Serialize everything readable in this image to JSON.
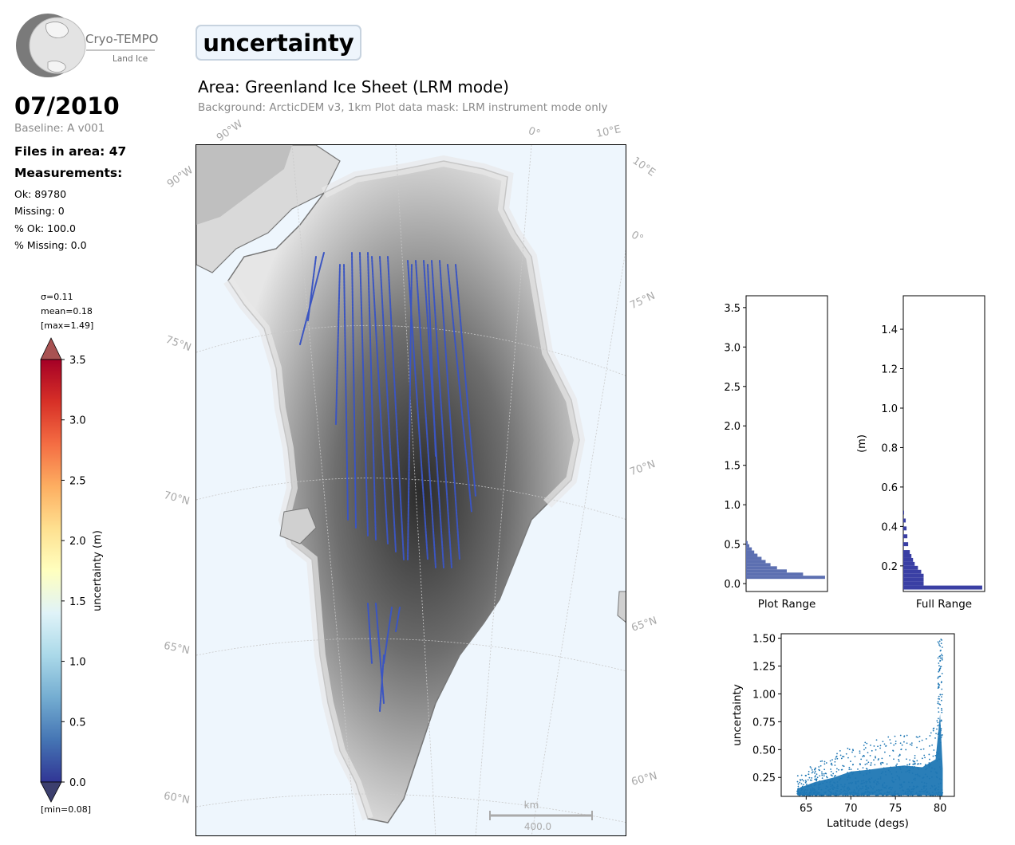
{
  "logo": {
    "name": "Cryo-TEMPO",
    "subtitle": "Land Ice"
  },
  "header": {
    "variable_title": "uncertainty",
    "area_title": "Area: Greenland Ice Sheet (LRM mode)",
    "subtitle": "Background: ArcticDEM v3, 1km   Plot data mask: LRM instrument mode only"
  },
  "summary": {
    "date": "07/2010",
    "baseline": "Baseline: A v001",
    "files": "Files in area: 47",
    "measurements_label": "Measurements:",
    "ok": "Ok: 89780",
    "missing": "Missing: 0",
    "pct_ok": "% Ok: 100.0",
    "pct_missing": "% Missing: 0.0"
  },
  "colorbar": {
    "sigma": "σ=0.11",
    "mean": "mean=0.18",
    "max": "[max=1.49]",
    "min": "[min=0.08]",
    "label": "uncertainty (m)",
    "ticks": [
      "0.0",
      "0.5",
      "1.0",
      "1.5",
      "2.0",
      "2.5",
      "3.0",
      "3.5"
    ],
    "colors": [
      "#313695",
      "#4575b4",
      "#74add1",
      "#abd9e9",
      "#e0f3f8",
      "#ffffbf",
      "#fee090",
      "#fdae61",
      "#f46d43",
      "#d73027",
      "#a50026"
    ]
  },
  "map": {
    "grid_labels": [
      "90°W",
      "90°W",
      "0°",
      "10°E",
      "10°E",
      "0°",
      "75°N",
      "75°N",
      "70°N",
      "70°N",
      "65°N",
      "65°N",
      "60°N",
      "60°N"
    ],
    "scale_unit": "km",
    "scale_value": "400.0"
  },
  "chart_data": [
    {
      "type": "bar",
      "orientation": "horizontal-histogram",
      "xlabel": "Plot Range",
      "ylim": [
        -0.1,
        3.65
      ],
      "yticks": [
        "0.0",
        "0.5",
        "1.0",
        "1.5",
        "2.0",
        "2.5",
        "3.0",
        "3.5"
      ],
      "bins": [
        0.06,
        0.1,
        0.14,
        0.18,
        0.22,
        0.26,
        0.3,
        0.34,
        0.38,
        0.42,
        0.46,
        0.5
      ],
      "values": [
        97,
        70,
        50,
        38,
        30,
        24,
        19,
        14,
        10,
        7,
        4,
        2
      ],
      "color": "#5c6fb1"
    },
    {
      "type": "bar",
      "orientation": "horizontal-histogram",
      "xlabel": "Full Range",
      "ylabel": "(m)",
      "ylim": [
        0.07,
        1.57
      ],
      "yticks": [
        "0.2",
        "0.4",
        "0.6",
        "0.8",
        "1.0",
        "1.2",
        "1.4"
      ],
      "bins": [
        0.08,
        0.1,
        0.12,
        0.14,
        0.16,
        0.18,
        0.2,
        0.22,
        0.24,
        0.26,
        0.3,
        0.34,
        0.38,
        0.42,
        0.46
      ],
      "values": [
        97,
        25,
        25,
        25,
        22,
        18,
        14,
        12,
        10,
        8,
        6,
        5,
        4,
        3,
        1
      ],
      "color": "#3a3fa4"
    },
    {
      "type": "scatter",
      "xlabel": "Latitude (degs)",
      "ylabel": "uncertainty",
      "xlim": [
        62.2,
        81.6
      ],
      "ylim": [
        0.08,
        1.54
      ],
      "xticks": [
        "65",
        "70",
        "75",
        "80"
      ],
      "yticks": [
        "0.25",
        "0.50",
        "0.75",
        "1.00",
        "1.25",
        "1.50"
      ],
      "color": "#1f77b4",
      "envelope": [
        {
          "x": 64.0,
          "y": 0.27
        },
        {
          "x": 66.0,
          "y": 0.38
        },
        {
          "x": 68.0,
          "y": 0.45
        },
        {
          "x": 70.0,
          "y": 0.55
        },
        {
          "x": 72.0,
          "y": 0.58
        },
        {
          "x": 74.0,
          "y": 0.62
        },
        {
          "x": 76.0,
          "y": 0.65
        },
        {
          "x": 78.0,
          "y": 0.62
        },
        {
          "x": 79.5,
          "y": 0.75
        },
        {
          "x": 80.0,
          "y": 1.49
        },
        {
          "x": 80.3,
          "y": 0.6
        }
      ]
    }
  ]
}
